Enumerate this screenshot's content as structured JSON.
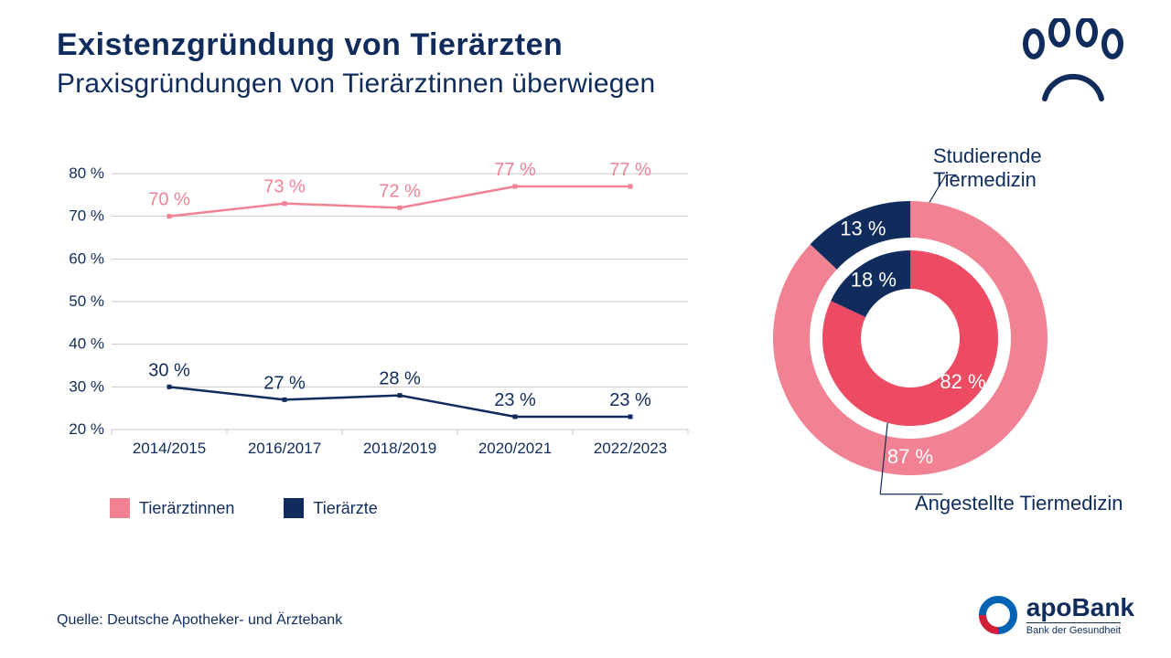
{
  "colors": {
    "navy": "#0f2c5c",
    "pink": "#f08294",
    "red": "#ec4b63",
    "grid": "#c8c8c8",
    "text_dark": "#0f2c5c",
    "bg": "#ffffff",
    "logo_blue": "#0063b4"
  },
  "header": {
    "title": "Existenzgründung von Tierärzten",
    "subtitle": "Praxisgründungen von Tierärztinnen überwiegen"
  },
  "line_chart": {
    "type": "line",
    "categories": [
      "2014/2015",
      "2016/2017",
      "2018/2019",
      "2020/2021",
      "2022/2023"
    ],
    "series": [
      {
        "name": "Tierärztinnen",
        "color": "#f08294",
        "values": [
          70,
          73,
          72,
          77,
          77
        ]
      },
      {
        "name": "Tierärzte",
        "color": "#0f2c5c",
        "values": [
          30,
          27,
          28,
          23,
          23
        ]
      }
    ],
    "ylim": [
      20,
      80
    ],
    "ytick_step": 10,
    "ytick_suffix": " %",
    "label_fontsize": 17,
    "data_label_fontsize": 20,
    "line_width": 2.5,
    "marker_size": 5
  },
  "legend": {
    "items": [
      {
        "label": "Tierärztinnen",
        "color": "#f08294"
      },
      {
        "label": "Tierärzte",
        "color": "#0f2c5c"
      }
    ]
  },
  "donut": {
    "type": "double-donut",
    "label_top": "Studierende Tiermedizin",
    "label_bottom": "Angestellte Tiermedizin",
    "outer": {
      "segments": [
        {
          "label": "87 %",
          "value": 87,
          "color": "#f08294"
        },
        {
          "label": "13 %",
          "value": 13,
          "color": "#0f2c5c"
        }
      ],
      "description": "Studierende"
    },
    "inner": {
      "segments": [
        {
          "label": "82 %",
          "value": 82,
          "color": "#ec4b63"
        },
        {
          "label": "18 %",
          "value": 18,
          "color": "#0f2c5c"
        }
      ],
      "description": "Angestellte"
    },
    "start_angle_deg": -90,
    "outer_r1": 110,
    "outer_r2": 150,
    "inner_r1": 54,
    "inner_r2": 96,
    "value_label_fontsize": 22
  },
  "source": "Quelle: Deutsche Apotheker- und Ärztebank",
  "logo": {
    "main": "apoBank",
    "sub": "Bank der Gesundheit"
  }
}
